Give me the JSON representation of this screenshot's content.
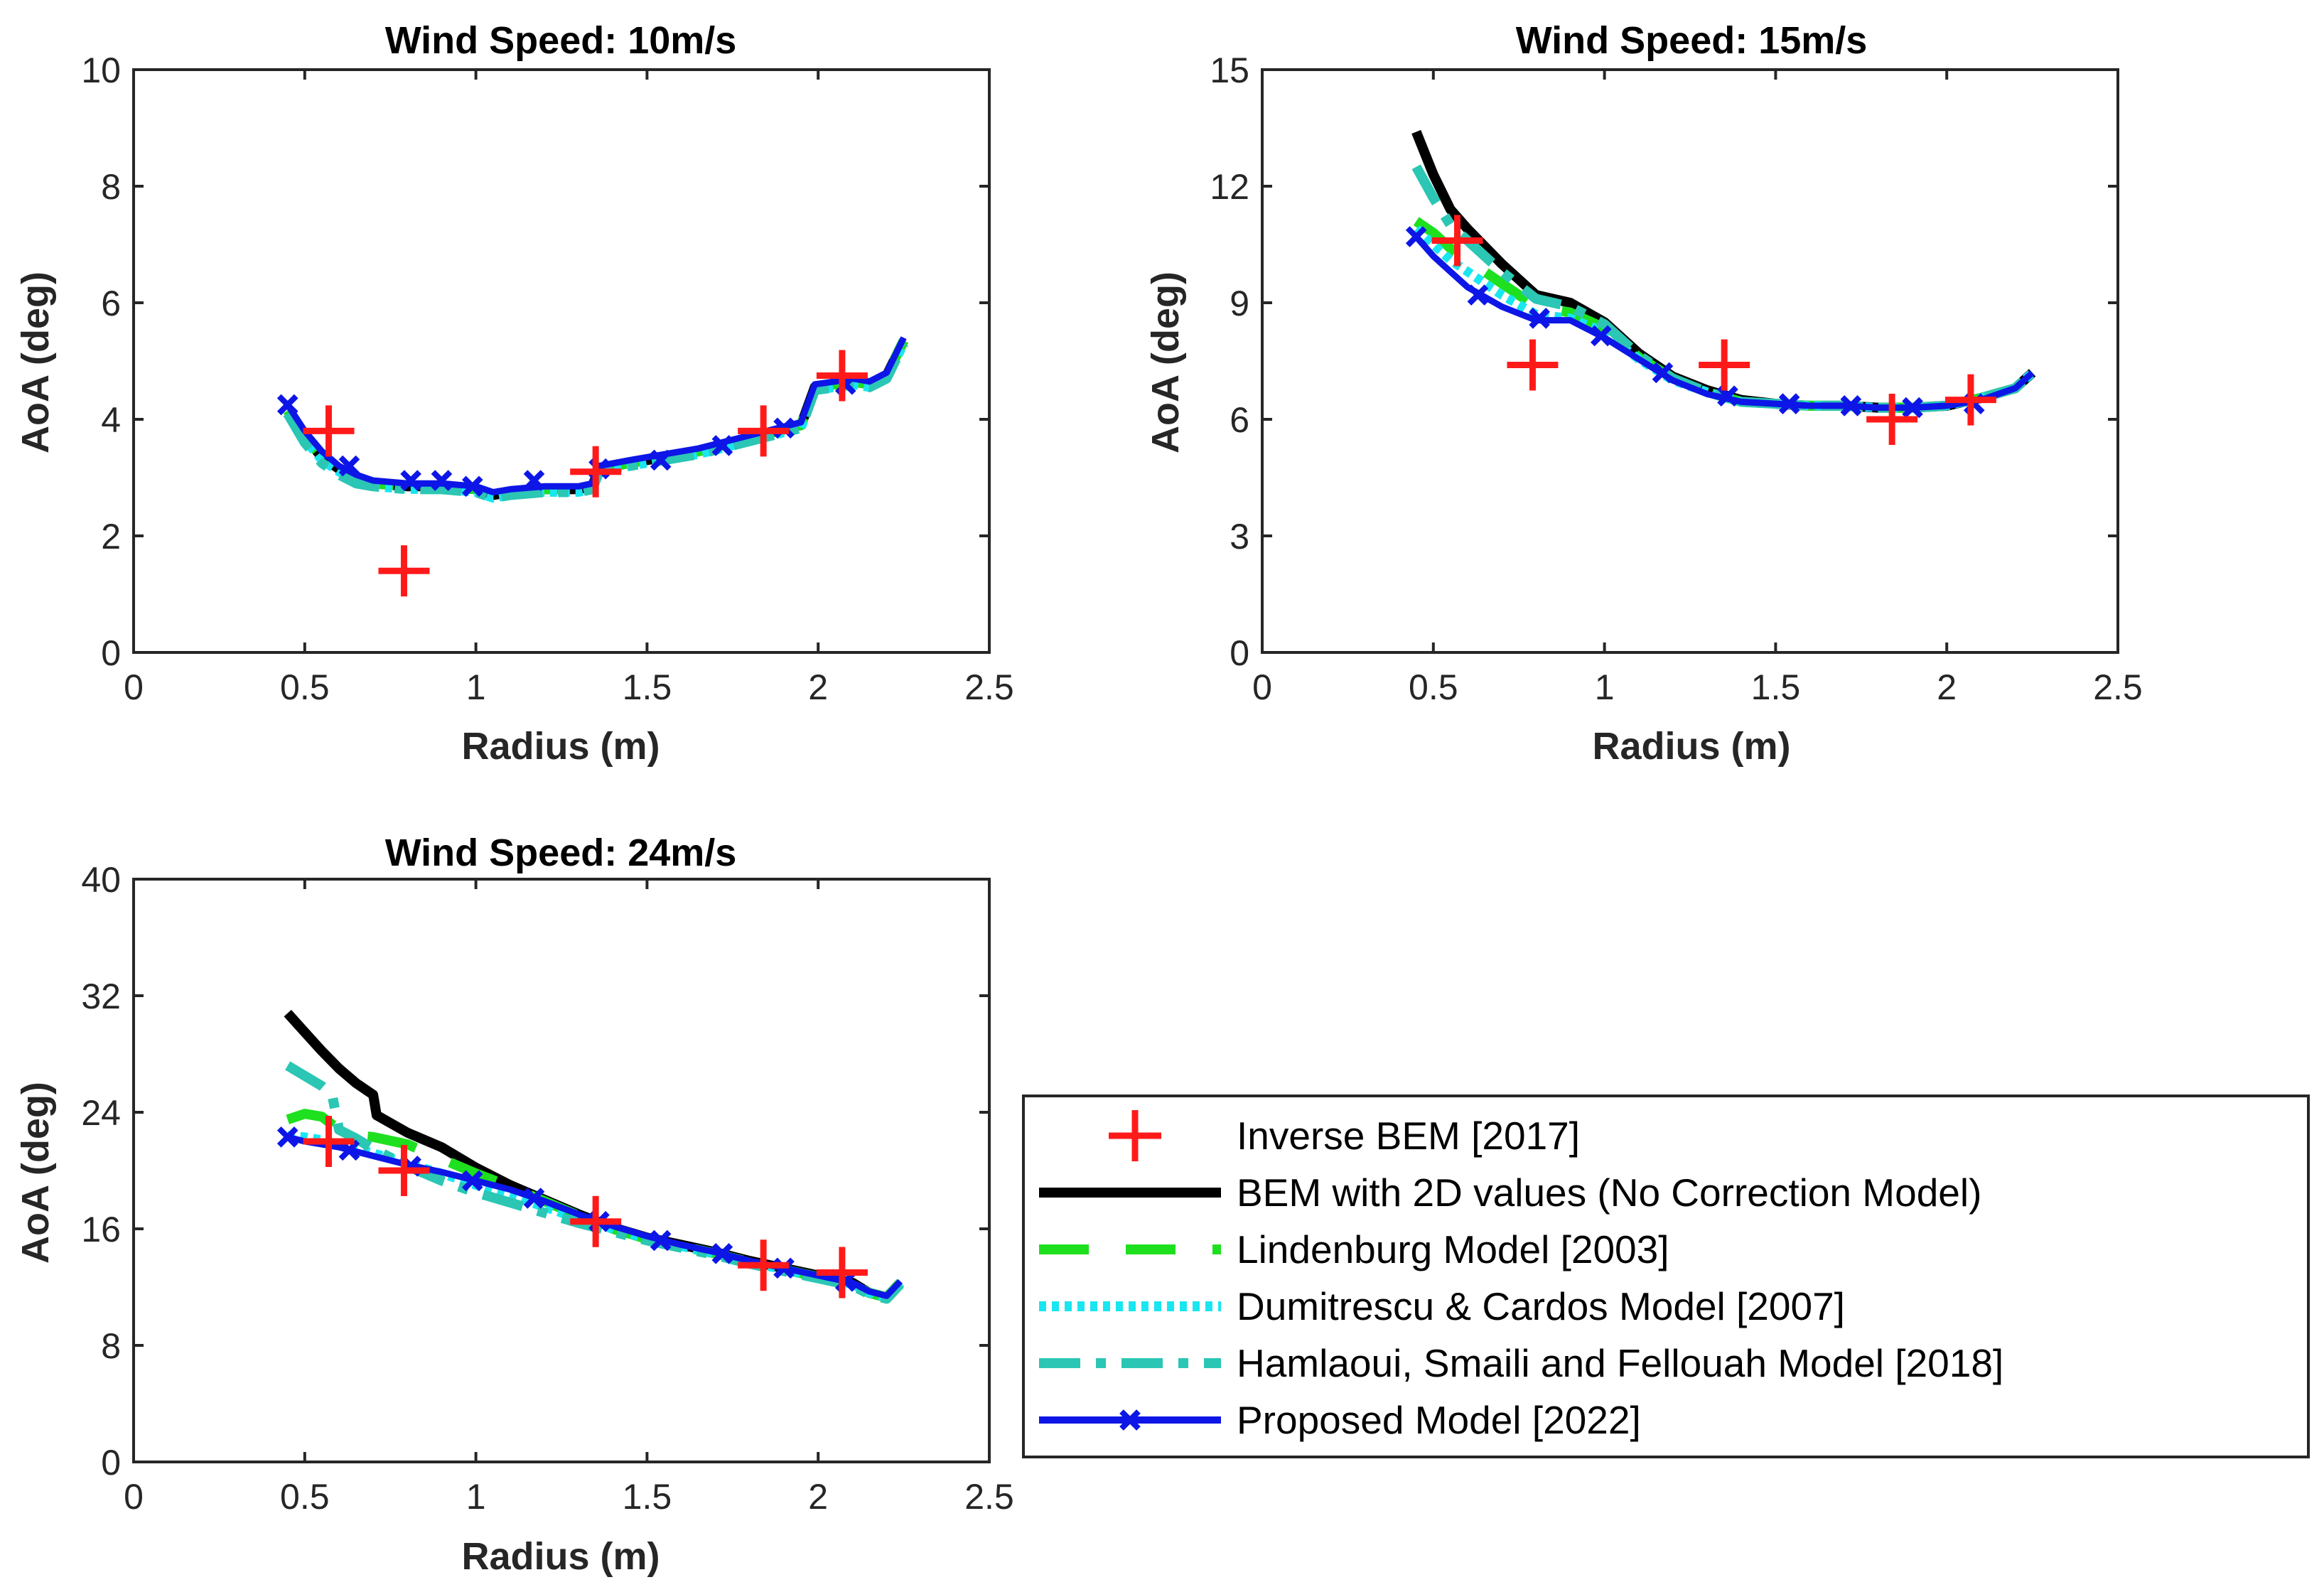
{
  "colors": {
    "inverse_bem": "#ff1a1a",
    "bem_2d": "#000000",
    "lindenburg": "#1ee01e",
    "dumitrescu": "#19e6f0",
    "hamlaoui": "#2bc6b4",
    "proposed": "#0d16e6"
  },
  "legend": {
    "placement": "bottom-right",
    "entries": [
      "Inverse BEM [2017]",
      "BEM with 2D values (No Correction Model)",
      "Lindenburg Model [2003]",
      "Dumitrescu & Cardos Model [2007]",
      "Hamlaoui, Smaili and Fellouah Model  [2018]",
      "Proposed Model [2022]"
    ]
  },
  "chart_data": [
    {
      "type": "line",
      "title": "Wind Speed: 10m/s",
      "xlabel": "Radius (m)",
      "ylabel": "AoA (deg)",
      "xlim": [
        0,
        2.5
      ],
      "ylim": [
        0,
        10
      ],
      "xticks": [
        "0",
        "0.5",
        "1",
        "1.5",
        "2",
        "2.5"
      ],
      "yticks": [
        "0",
        "2",
        "4",
        "6",
        "8",
        "10"
      ],
      "grid": false,
      "scatter": {
        "name": "Inverse BEM [2017]",
        "x": [
          0.57,
          0.79,
          1.35,
          1.84,
          2.07
        ],
        "y": [
          3.8,
          1.4,
          3.1,
          3.8,
          4.75
        ]
      },
      "series": [
        {
          "name": "BEM with 2D values (No Correction Model)",
          "x": [
            0.45,
            0.5,
            0.55,
            0.6,
            0.65,
            0.7,
            0.8,
            0.9,
            1.0,
            1.05,
            1.1,
            1.2,
            1.3,
            1.34,
            1.36,
            1.45,
            1.55,
            1.65,
            1.75,
            1.85,
            1.95,
            1.99,
            2.05,
            2.1,
            2.15,
            2.2,
            2.25
          ],
          "y": [
            4.1,
            3.7,
            3.35,
            3.15,
            3.0,
            2.9,
            2.85,
            2.85,
            2.8,
            2.7,
            2.75,
            2.8,
            2.8,
            2.85,
            3.15,
            3.25,
            3.35,
            3.45,
            3.6,
            3.75,
            3.9,
            4.55,
            4.6,
            4.65,
            4.6,
            4.75,
            5.35
          ]
        },
        {
          "name": "Lindenburg Model [2003]",
          "x": [
            0.45,
            0.5,
            0.55,
            0.6,
            0.65,
            0.7,
            0.8,
            0.9,
            1.0,
            1.05,
            1.1,
            1.2,
            1.3,
            1.34,
            1.36,
            1.45,
            1.55,
            1.65,
            1.75,
            1.85,
            1.95,
            1.99,
            2.05,
            2.1,
            2.15,
            2.2,
            2.25
          ],
          "y": [
            4.15,
            3.7,
            3.35,
            3.15,
            3.0,
            2.9,
            2.85,
            2.85,
            2.8,
            2.7,
            2.75,
            2.8,
            2.8,
            2.85,
            3.15,
            3.25,
            3.35,
            3.45,
            3.6,
            3.75,
            3.9,
            4.55,
            4.6,
            4.65,
            4.6,
            4.75,
            5.35
          ]
        },
        {
          "name": "Dumitrescu & Cardos Model [2007]",
          "x": [
            0.45,
            0.5,
            0.55,
            0.6,
            0.65,
            0.7,
            0.8,
            0.9,
            1.0,
            1.05,
            1.1,
            1.2,
            1.3,
            1.34,
            1.36,
            1.45,
            1.55,
            1.65,
            1.75,
            1.85,
            1.95,
            1.99,
            2.05,
            2.1,
            2.15,
            2.2,
            2.25
          ],
          "y": [
            4.1,
            3.65,
            3.3,
            3.1,
            2.95,
            2.85,
            2.8,
            2.8,
            2.75,
            2.65,
            2.7,
            2.75,
            2.75,
            2.8,
            3.1,
            3.2,
            3.3,
            3.4,
            3.55,
            3.7,
            3.85,
            4.5,
            4.55,
            4.6,
            4.55,
            4.7,
            5.3
          ]
        },
        {
          "name": "Hamlaoui, Smaili and Fellouah Model  [2018]",
          "x": [
            0.45,
            0.5,
            0.55,
            0.6,
            0.65,
            0.7,
            0.8,
            0.9,
            1.0,
            1.05,
            1.1,
            1.2,
            1.3,
            1.34,
            1.36,
            1.45,
            1.55,
            1.65,
            1.75,
            1.85,
            1.95,
            1.99,
            2.05,
            2.1,
            2.15,
            2.2,
            2.25
          ],
          "y": [
            4.1,
            3.6,
            3.25,
            3.05,
            2.9,
            2.85,
            2.8,
            2.8,
            2.75,
            2.65,
            2.7,
            2.75,
            2.75,
            2.8,
            3.1,
            3.2,
            3.3,
            3.4,
            3.55,
            3.7,
            3.85,
            4.5,
            4.55,
            4.6,
            4.55,
            4.7,
            5.3
          ]
        },
        {
          "name": "Proposed Model [2022]",
          "x": [
            0.45,
            0.5,
            0.55,
            0.6,
            0.65,
            0.7,
            0.8,
            0.9,
            1.0,
            1.05,
            1.1,
            1.2,
            1.3,
            1.34,
            1.36,
            1.45,
            1.55,
            1.65,
            1.75,
            1.85,
            1.95,
            1.99,
            2.05,
            2.1,
            2.15,
            2.2,
            2.25
          ],
          "y": [
            4.25,
            3.8,
            3.45,
            3.2,
            3.05,
            2.95,
            2.9,
            2.9,
            2.85,
            2.75,
            2.8,
            2.85,
            2.85,
            2.9,
            3.2,
            3.3,
            3.4,
            3.5,
            3.65,
            3.8,
            3.95,
            4.6,
            4.65,
            4.7,
            4.65,
            4.8,
            5.4
          ],
          "markers": {
            "x": [
              0.45,
              0.63,
              0.81,
              0.9,
              0.99,
              1.17,
              1.36,
              1.54,
              1.72,
              1.9,
              2.08
            ],
            "y": [
              4.25,
              3.2,
              2.95,
              2.95,
              2.85,
              2.95,
              3.15,
              3.3,
              3.55,
              3.85,
              4.6
            ]
          }
        }
      ]
    },
    {
      "type": "line",
      "title": "Wind Speed: 15m/s",
      "xlabel": "Radius (m)",
      "ylabel": "AoA (deg)",
      "xlim": [
        0,
        2.5
      ],
      "ylim": [
        0,
        15
      ],
      "xticks": [
        "0",
        "0.5",
        "1",
        "1.5",
        "2",
        "2.5"
      ],
      "yticks": [
        "0",
        "3",
        "6",
        "9",
        "12",
        "15"
      ],
      "grid": false,
      "scatter": {
        "name": "Inverse BEM [2017]",
        "x": [
          0.57,
          0.79,
          1.35,
          1.84,
          2.07
        ],
        "y": [
          10.6,
          7.4,
          7.4,
          6.0,
          6.5
        ]
      },
      "series": [
        {
          "name": "BEM with 2D values (No Correction Model)",
          "x": [
            0.45,
            0.5,
            0.55,
            0.6,
            0.7,
            0.8,
            0.9,
            1.0,
            1.1,
            1.2,
            1.3,
            1.4,
            1.5,
            1.6,
            1.7,
            1.8,
            1.9,
            2.0,
            2.1,
            2.2,
            2.25
          ],
          "y": [
            13.4,
            12.3,
            11.4,
            10.9,
            10.0,
            9.2,
            9.0,
            8.5,
            7.7,
            7.1,
            6.75,
            6.5,
            6.4,
            6.35,
            6.35,
            6.3,
            6.3,
            6.35,
            6.55,
            6.8,
            7.2
          ]
        },
        {
          "name": "Lindenburg Model [2003]",
          "x": [
            0.45,
            0.5,
            0.55,
            0.6,
            0.7,
            0.8,
            0.9,
            1.0,
            1.1,
            1.2,
            1.3,
            1.4,
            1.5,
            1.6,
            1.7,
            1.8,
            1.9,
            2.0,
            2.1,
            2.2,
            2.25
          ],
          "y": [
            11.1,
            10.8,
            10.4,
            10.1,
            9.5,
            8.9,
            8.75,
            8.35,
            7.6,
            7.05,
            6.7,
            6.45,
            6.4,
            6.35,
            6.35,
            6.3,
            6.3,
            6.35,
            6.55,
            6.8,
            7.2
          ]
        },
        {
          "name": "Dumitrescu & Cardos Model [2007]",
          "x": [
            0.45,
            0.5,
            0.55,
            0.6,
            0.7,
            0.8,
            0.9,
            1.0,
            1.1,
            1.2,
            1.3,
            1.4,
            1.5,
            1.6,
            1.7,
            1.8,
            1.9,
            2.0,
            2.1,
            2.2,
            2.25
          ],
          "y": [
            10.9,
            10.5,
            10.1,
            9.8,
            9.2,
            8.7,
            8.6,
            8.25,
            7.55,
            7.0,
            6.7,
            6.45,
            6.4,
            6.35,
            6.35,
            6.3,
            6.3,
            6.35,
            6.55,
            6.8,
            7.2
          ]
        },
        {
          "name": "Hamlaoui, Smaili and Fellouah Model  [2018]",
          "x": [
            0.45,
            0.5,
            0.55,
            0.6,
            0.7,
            0.8,
            0.9,
            1.0,
            1.1,
            1.2,
            1.3,
            1.4,
            1.5,
            1.6,
            1.7,
            1.8,
            1.9,
            2.0,
            2.1,
            2.2,
            2.25
          ],
          "y": [
            12.5,
            11.7,
            11.0,
            10.6,
            9.8,
            9.1,
            8.9,
            8.45,
            7.65,
            7.05,
            6.7,
            6.45,
            6.4,
            6.35,
            6.35,
            6.3,
            6.3,
            6.35,
            6.55,
            6.8,
            7.2
          ]
        },
        {
          "name": "Proposed Model [2022]",
          "x": [
            0.45,
            0.5,
            0.55,
            0.6,
            0.7,
            0.8,
            0.9,
            1.0,
            1.1,
            1.2,
            1.3,
            1.4,
            1.5,
            1.6,
            1.7,
            1.8,
            1.9,
            2.0,
            2.1,
            2.2,
            2.25
          ],
          "y": [
            10.7,
            10.2,
            9.8,
            9.4,
            8.9,
            8.55,
            8.55,
            8.1,
            7.55,
            7.0,
            6.65,
            6.45,
            6.4,
            6.35,
            6.35,
            6.3,
            6.3,
            6.35,
            6.5,
            6.8,
            7.2
          ],
          "markers": {
            "x": [
              0.45,
              0.63,
              0.81,
              0.99,
              1.17,
              1.36,
              1.54,
              1.72,
              1.9,
              2.08
            ],
            "y": [
              10.7,
              9.2,
              8.6,
              8.15,
              7.2,
              6.6,
              6.4,
              6.35,
              6.3,
              6.4
            ]
          }
        }
      ]
    },
    {
      "type": "line",
      "title": "Wind Speed: 24m/s",
      "xlabel": "Radius (m)",
      "ylabel": "AoA (deg)",
      "xlim": [
        0,
        2.5
      ],
      "ylim": [
        0,
        40
      ],
      "xticks": [
        "0",
        "0.5",
        "1",
        "1.5",
        "2",
        "2.5"
      ],
      "yticks": [
        "0",
        "8",
        "16",
        "24",
        "32",
        "40"
      ],
      "grid": false,
      "scatter": {
        "name": "Inverse BEM [2017]",
        "x": [
          0.57,
          0.79,
          1.35,
          1.84,
          2.07
        ],
        "y": [
          22.0,
          20.0,
          16.5,
          13.5,
          13.0
        ]
      },
      "series": [
        {
          "name": "BEM with 2D values (No Correction Model)",
          "x": [
            0.45,
            0.5,
            0.55,
            0.6,
            0.65,
            0.7,
            0.71,
            0.8,
            0.9,
            1.0,
            1.1,
            1.2,
            1.3,
            1.4,
            1.5,
            1.6,
            1.7,
            1.8,
            1.9,
            2.0,
            2.1,
            2.15,
            2.2,
            2.24
          ],
          "y": [
            30.8,
            29.5,
            28.2,
            27.0,
            26.0,
            25.2,
            23.8,
            22.6,
            21.6,
            20.2,
            19.0,
            18.0,
            17.0,
            16.1,
            15.4,
            14.9,
            14.4,
            13.8,
            13.3,
            12.8,
            12.3,
            11.6,
            11.3,
            12.3
          ]
        },
        {
          "name": "Lindenburg Model [2003]",
          "x": [
            0.45,
            0.5,
            0.55,
            0.6,
            0.65,
            0.7,
            0.8,
            0.9,
            1.0,
            1.1,
            1.2,
            1.3,
            1.4,
            1.5,
            1.6,
            1.7,
            1.8,
            1.9,
            2.0,
            2.1,
            2.15,
            2.2,
            2.24
          ],
          "y": [
            23.5,
            23.9,
            23.7,
            22.8,
            22.4,
            22.3,
            21.8,
            20.8,
            19.8,
            18.9,
            17.9,
            16.9,
            16.0,
            15.3,
            14.8,
            14.3,
            13.7,
            13.2,
            12.7,
            12.2,
            11.6,
            11.3,
            12.3
          ]
        },
        {
          "name": "Dumitrescu & Cardos Model [2007]",
          "x": [
            0.45,
            0.5,
            0.55,
            0.6,
            0.65,
            0.7,
            0.8,
            0.9,
            1.0,
            1.1,
            1.2,
            1.3,
            1.4,
            1.5,
            1.6,
            1.7,
            1.8,
            1.9,
            2.0,
            2.1,
            2.15,
            2.2,
            2.24
          ],
          "y": [
            22.4,
            22.3,
            22.1,
            21.8,
            21.5,
            21.2,
            20.5,
            19.8,
            19.0,
            18.3,
            17.5,
            16.7,
            16.0,
            15.3,
            14.8,
            14.3,
            13.7,
            13.2,
            12.7,
            12.2,
            11.6,
            11.3,
            12.3
          ]
        },
        {
          "name": "Hamlaoui, Smaili and Fellouah Model  [2018]",
          "x": [
            0.45,
            0.5,
            0.55,
            0.58,
            0.6,
            0.65,
            0.7,
            0.8,
            0.9,
            1.0,
            1.1,
            1.2,
            1.3,
            1.4,
            1.5,
            1.6,
            1.7,
            1.8,
            1.9,
            2.0,
            2.1,
            2.15,
            2.2,
            2.24
          ],
          "y": [
            27.2,
            26.5,
            25.8,
            25.2,
            22.8,
            22.2,
            21.5,
            20.3,
            19.3,
            18.5,
            17.8,
            17.1,
            16.4,
            15.8,
            15.2,
            14.7,
            14.2,
            13.6,
            13.1,
            12.6,
            12.1,
            11.5,
            11.2,
            12.2
          ]
        },
        {
          "name": "Proposed Model [2022]",
          "x": [
            0.45,
            0.5,
            0.55,
            0.6,
            0.65,
            0.7,
            0.8,
            0.9,
            1.0,
            1.1,
            1.2,
            1.3,
            1.4,
            1.5,
            1.6,
            1.7,
            1.8,
            1.9,
            2.0,
            2.1,
            2.15,
            2.2,
            2.24
          ],
          "y": [
            22.3,
            22.0,
            21.8,
            21.6,
            21.3,
            21.0,
            20.4,
            19.9,
            19.3,
            18.7,
            17.9,
            17.0,
            16.2,
            15.5,
            14.9,
            14.4,
            13.8,
            13.3,
            12.8,
            12.3,
            11.7,
            11.4,
            12.4
          ],
          "markers": {
            "x": [
              0.45,
              0.63,
              0.81,
              0.99,
              1.17,
              1.36,
              1.54,
              1.72,
              1.9,
              2.08
            ],
            "y": [
              22.3,
              21.4,
              20.3,
              19.3,
              18.1,
              16.5,
              15.2,
              14.3,
              13.3,
              12.4
            ]
          }
        }
      ]
    }
  ]
}
